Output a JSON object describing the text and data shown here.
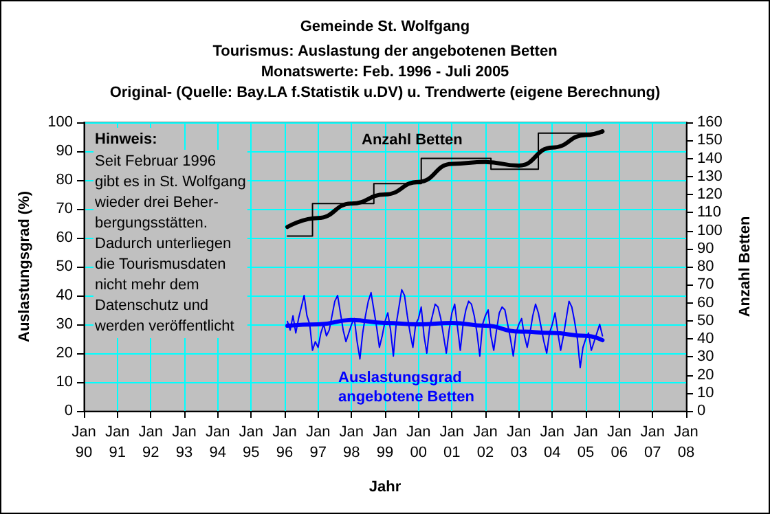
{
  "chart_data": {
    "type": "line",
    "title": "Gemeinde St. Wolfgang",
    "subtitle": "Tourismus: Auslastung der angebotenen Betten\nMonatswerte: Feb. 1996 - Juli 2005\nOriginal- (Quelle: Bay.LA f.Statistik u.DV) u. Trendwerte (eigene Berechnung)",
    "xlabel": "Jahr",
    "ylabel": "Auslastungsgrad (%)",
    "y2label": "Anzahl Betten",
    "annotations": [
      "Hinweis:",
      "Seit Februar 1996\ngibt es in St. Wolfgang\nwieder drei Beher-\nbergungsstätten.\nDadurch unterliegen\ndie Tourismusdaten\nnicht mehr dem\nDatenschutz und\nwerden veröffentlicht"
    ],
    "xlim": [
      "1990-01",
      "2008-01"
    ],
    "xticks": [
      {
        "value": "1990-01",
        "label": "Jan 90"
      },
      {
        "value": "1991-01",
        "label": "Jan 91"
      },
      {
        "value": "1992-01",
        "label": "Jan 92"
      },
      {
        "value": "1993-01",
        "label": "Jan 93"
      },
      {
        "value": "1994-01",
        "label": "Jan 94"
      },
      {
        "value": "1995-01",
        "label": "Jan 95"
      },
      {
        "value": "1996-01",
        "label": "Jan 96"
      },
      {
        "value": "1997-01",
        "label": "Jan 97"
      },
      {
        "value": "1998-01",
        "label": "Jan 98"
      },
      {
        "value": "1999-01",
        "label": "Jan 99"
      },
      {
        "value": "2000-01",
        "label": "Jan 00"
      },
      {
        "value": "2001-01",
        "label": "Jan 01"
      },
      {
        "value": "2002-01",
        "label": "Jan 02"
      },
      {
        "value": "2003-01",
        "label": "Jan 03"
      },
      {
        "value": "2004-01",
        "label": "Jan 04"
      },
      {
        "value": "2005-01",
        "label": "Jan 05"
      },
      {
        "value": "2006-01",
        "label": "Jan 06"
      },
      {
        "value": "2007-01",
        "label": "Jan 07"
      },
      {
        "value": "2008-01",
        "label": "Jan 08"
      }
    ],
    "ylim": [
      0,
      100
    ],
    "yticks": [
      0,
      10,
      20,
      30,
      40,
      50,
      60,
      70,
      80,
      90,
      100
    ],
    "y2lim": [
      0,
      160
    ],
    "y2ticks": [
      0,
      10,
      20,
      30,
      40,
      50,
      60,
      70,
      80,
      90,
      100,
      110,
      120,
      130,
      140,
      150,
      160
    ],
    "grid": true,
    "legend": false,
    "marker": "none",
    "series": [
      {
        "name": "Auslastungsgrad angebotene Betten",
        "color": "#0000ff",
        "x": [
          "1996-02",
          "1996-03",
          "1996-04",
          "1996-05",
          "1996-06",
          "1996-07",
          "1996-08",
          "1996-09",
          "1996-10",
          "1996-11",
          "1996-12",
          "1997-01",
          "1997-02",
          "1997-03",
          "1997-04",
          "1997-05",
          "1997-06",
          "1997-07",
          "1997-08",
          "1997-09",
          "1997-10",
          "1997-11",
          "1997-12",
          "1998-01",
          "1998-02",
          "1998-03",
          "1998-04",
          "1998-05",
          "1998-06",
          "1998-07",
          "1998-08",
          "1998-09",
          "1998-10",
          "1998-11",
          "1998-12",
          "1999-01",
          "1999-02",
          "1999-03",
          "1999-04",
          "1999-05",
          "1999-06",
          "1999-07",
          "1999-08",
          "1999-09",
          "1999-10",
          "1999-11",
          "1999-12",
          "2000-01",
          "2000-02",
          "2000-03",
          "2000-04",
          "2000-05",
          "2000-06",
          "2000-07",
          "2000-08",
          "2000-09",
          "2000-10",
          "2000-11",
          "2000-12",
          "2001-01",
          "2001-02",
          "2001-03",
          "2001-04",
          "2001-05",
          "2001-06",
          "2001-07",
          "2001-08",
          "2001-09",
          "2001-10",
          "2001-11",
          "2001-12",
          "2002-01",
          "2002-02",
          "2002-03",
          "2002-04",
          "2002-05",
          "2002-06",
          "2002-07",
          "2002-08",
          "2002-09",
          "2002-10",
          "2002-11",
          "2002-12",
          "2003-01",
          "2003-02",
          "2003-03",
          "2003-04",
          "2003-05",
          "2003-06",
          "2003-07",
          "2003-08",
          "2003-09",
          "2003-10",
          "2003-11",
          "2003-12",
          "2004-01",
          "2004-02",
          "2004-03",
          "2004-04",
          "2004-05",
          "2004-06",
          "2004-07",
          "2004-08",
          "2004-09",
          "2004-10",
          "2004-11",
          "2004-12",
          "2005-01",
          "2005-02",
          "2005-03",
          "2005-04",
          "2005-05",
          "2005-06",
          "2005-07"
        ],
        "values": [
          31,
          28,
          33,
          27,
          32,
          36,
          40,
          33,
          30,
          21,
          24,
          22,
          27,
          30,
          26,
          28,
          33,
          38,
          40,
          34,
          28,
          24,
          27,
          30,
          32,
          24,
          18,
          27,
          33,
          38,
          41,
          35,
          29,
          22,
          26,
          31,
          34,
          28,
          19,
          30,
          36,
          42,
          40,
          33,
          27,
          22,
          30,
          32,
          36,
          26,
          20,
          29,
          33,
          37,
          36,
          32,
          26,
          20,
          28,
          34,
          37,
          29,
          21,
          30,
          35,
          38,
          37,
          33,
          27,
          19,
          30,
          33,
          35,
          26,
          21,
          28,
          34,
          36,
          35,
          30,
          25,
          19,
          27,
          30,
          32,
          26,
          22,
          27,
          33,
          37,
          34,
          29,
          24,
          20,
          27,
          30,
          34,
          27,
          21,
          26,
          32,
          38,
          36,
          31,
          25,
          15,
          22,
          25,
          27,
          21,
          24,
          27,
          30,
          26
        ]
      },
      {
        "type": "line",
        "color": "#0000ff",
        "x": [
          "1996-02",
          "1997-01",
          "1998-01",
          "1999-01",
          "2000-01",
          "2001-01",
          "2002-01",
          "2003-01",
          "2004-01",
          "2005-01",
          "2005-07"
        ],
        "values": [
          29.5,
          30,
          31.5,
          30.5,
          30,
          30.5,
          29.5,
          27.5,
          27,
          26,
          24.5
        ]
      },
      {
        "type": "step",
        "name": "Anzahl Betten",
        "axis": "y2",
        "color": "#000000",
        "x": [
          "1996-02",
          "1996-11",
          "1998-09",
          "2000-02",
          "2002-03",
          "2003-08",
          "2005-07"
        ],
        "values": [
          97,
          115,
          126,
          140,
          134,
          154,
          154
        ]
      },
      {
        "type": "line",
        "axis": "y2",
        "color": "#000000",
        "x": [
          "1996-02",
          "1997-01",
          "1998-01",
          "1999-01",
          "2000-01",
          "2001-01",
          "2002-01",
          "2003-01",
          "2004-01",
          "2005-01",
          "2005-07"
        ],
        "values": [
          102,
          107,
          115,
          120,
          127,
          137,
          138,
          136,
          146,
          153,
          155
        ]
      }
    ]
  }
}
